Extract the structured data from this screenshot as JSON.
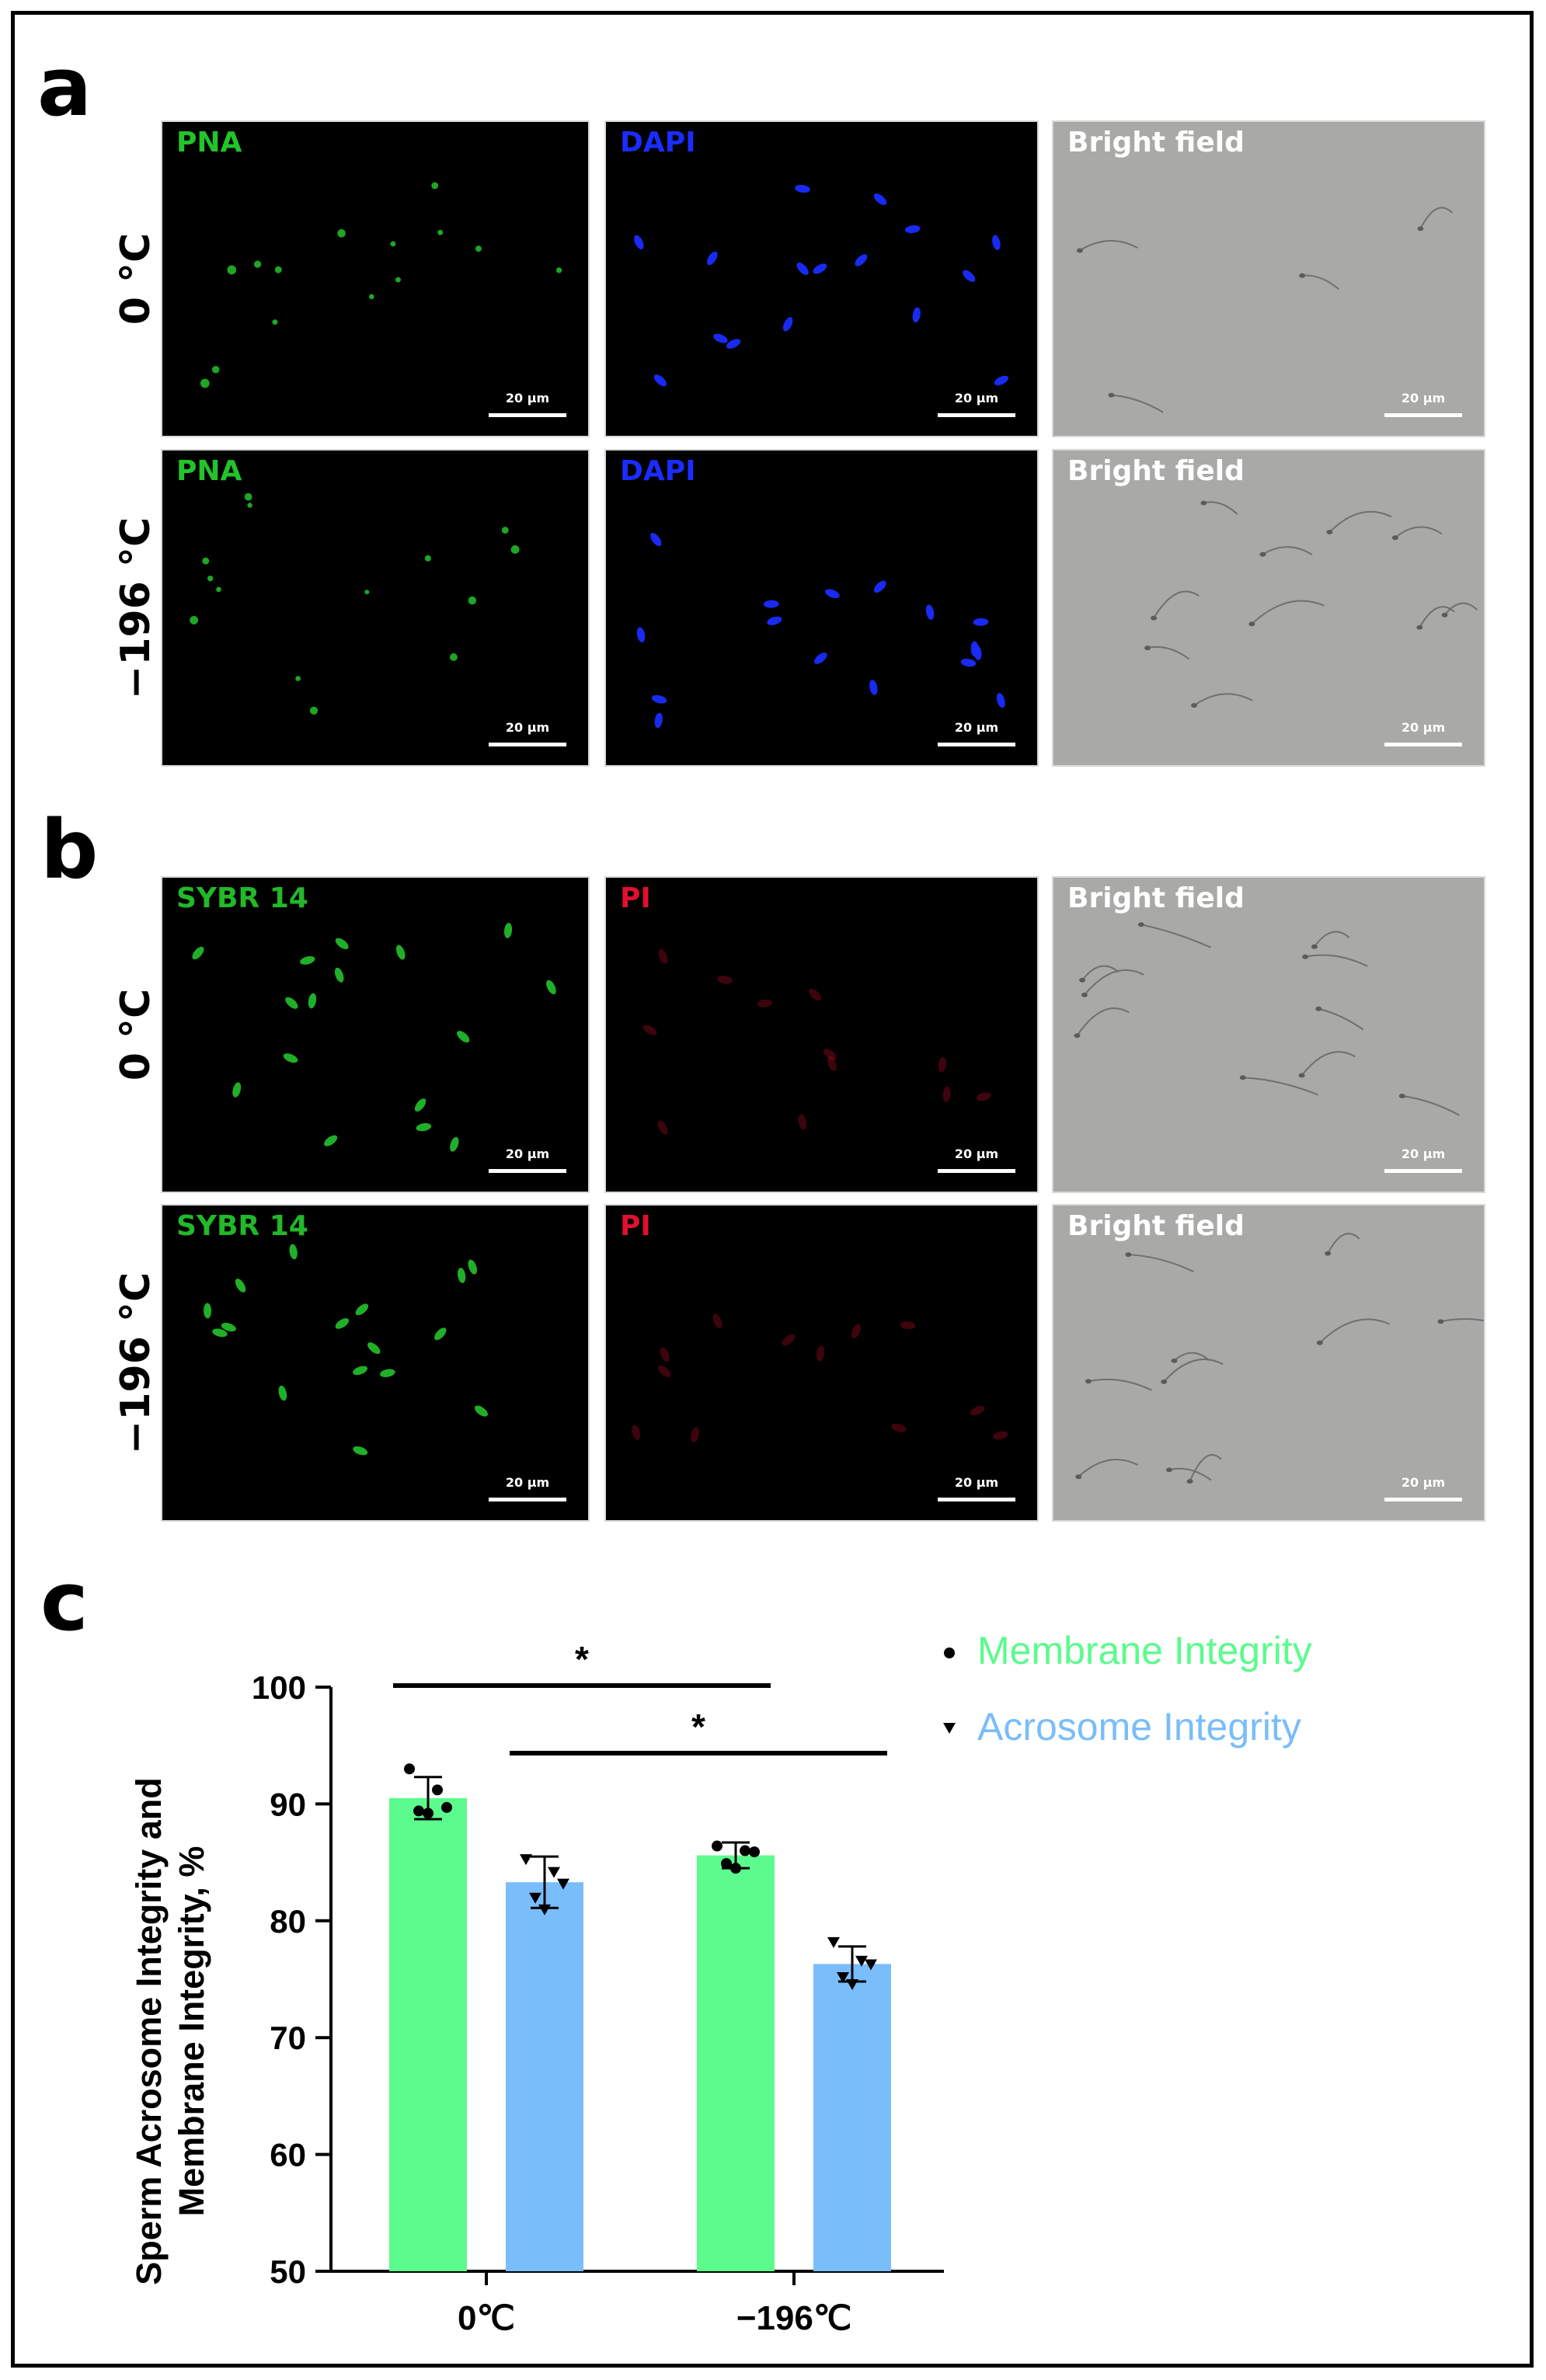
{
  "panels": {
    "a": {
      "letter": "a",
      "rows": [
        {
          "label": "0 °C",
          "channels": [
            {
              "label": "PNA",
              "color": "#22c42a",
              "style": "dark",
              "cells": "dots"
            },
            {
              "label": "DAPI",
              "color": "#1a2cff",
              "style": "dark",
              "cells": "ovals"
            },
            {
              "label": "Bright field",
              "color": "#ffffff",
              "style": "bright",
              "cells": "none"
            }
          ]
        },
        {
          "label": "−196 °C",
          "channels": [
            {
              "label": "PNA",
              "color": "#22c42a",
              "style": "dark",
              "cells": "dots"
            },
            {
              "label": "DAPI",
              "color": "#1a2cff",
              "style": "dark",
              "cells": "ovals"
            },
            {
              "label": "Bright field",
              "color": "#ffffff",
              "style": "bright",
              "cells": "tails"
            }
          ]
        }
      ]
    },
    "b": {
      "letter": "b",
      "rows": [
        {
          "label": "0 °C",
          "channels": [
            {
              "label": "SYBR 14",
              "color": "#22b82a",
              "style": "dark",
              "cells": "ovals"
            },
            {
              "label": "PI",
              "color": "#e0102e",
              "style": "dark",
              "cells": "faint"
            },
            {
              "label": "Bright field",
              "color": "#ffffff",
              "style": "bright",
              "cells": "tails"
            }
          ]
        },
        {
          "label": "−196 °C",
          "channels": [
            {
              "label": "SYBR 14",
              "color": "#22b82a",
              "style": "dark",
              "cells": "ovals"
            },
            {
              "label": "PI",
              "color": "#e0102e",
              "style": "dark",
              "cells": "faint"
            },
            {
              "label": "Bright field",
              "color": "#ffffff",
              "style": "bright",
              "cells": "tails"
            }
          ]
        }
      ]
    },
    "c": {
      "letter": "c"
    }
  },
  "scalebar_label": "20 μm",
  "chart_data": {
    "type": "bar",
    "categories": [
      "0℃",
      "−196℃"
    ],
    "series": [
      {
        "name": "Membrane Integrity",
        "color": "#5cfb8d",
        "values": [
          90.5,
          85.6
        ],
        "errors": [
          1.8,
          1.1
        ],
        "points": [
          [
            93.0,
            91.2,
            89.7,
            89.4,
            89.2
          ],
          [
            86.4,
            86.0,
            85.9,
            84.9,
            84.5
          ]
        ]
      },
      {
        "name": "Acrosome Integrity",
        "color": "#79bdfb",
        "values": [
          83.3,
          76.3
        ],
        "errors": [
          2.2,
          1.5
        ],
        "points": [
          [
            85.3,
            84.2,
            83.2,
            82.0,
            81.0
          ],
          [
            78.2,
            76.6,
            76.3,
            75.2,
            74.6
          ]
        ]
      }
    ],
    "ylabel_lines": [
      "Sperm Acrosome Integrity and",
      "Membrane Integrity, %"
    ],
    "xlabel": "",
    "ylim": [
      50,
      100
    ],
    "yticks": [
      50,
      60,
      70,
      80,
      90,
      100
    ],
    "significance": [
      {
        "label": "*",
        "from": "0℃ Membrane Integrity",
        "to": "−196℃ Membrane Integrity"
      },
      {
        "label": "*",
        "from": "0℃ Acrosome Integrity",
        "to": "−196℃ Acrosome Integrity"
      }
    ],
    "legend_placement": "top-right",
    "legend_markers": [
      "circle",
      "triangle-down"
    ]
  }
}
